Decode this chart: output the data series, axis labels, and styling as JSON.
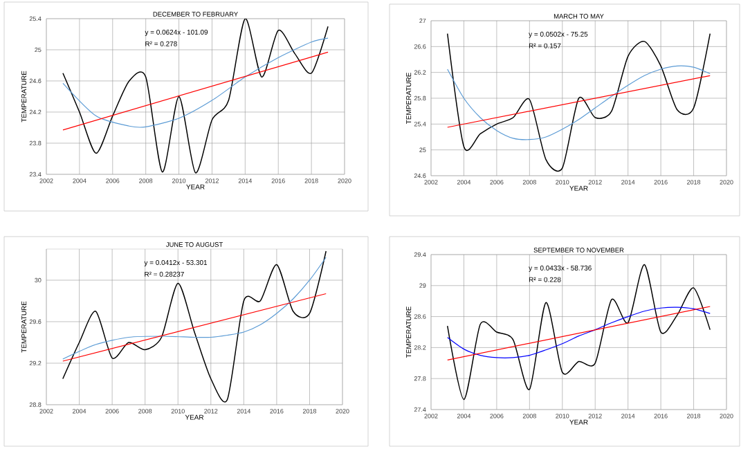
{
  "chart_data": [
    {
      "type": "line",
      "title": "DECEMBER TO FEBRUARY",
      "xlabel": "YEAR",
      "ylabel": "TEMPERATURE",
      "annotations": [
        "y = 0.0624x - 101.09",
        "R² = 0.278"
      ],
      "grid": true,
      "xlim": [
        2002,
        2020
      ],
      "xticks": [
        2002,
        2004,
        2006,
        2008,
        2010,
        2012,
        2014,
        2016,
        2018,
        2020
      ],
      "ylim": [
        23.4,
        25.4
      ],
      "yticks": [
        23.4,
        23.8,
        24.2,
        24.6,
        25,
        25.4
      ],
      "series": [
        {
          "color": "#000000",
          "x": [
            2003,
            2004,
            2005,
            2006,
            2007,
            2008,
            2009,
            2010,
            2011,
            2012,
            2013,
            2014,
            2015,
            2016,
            2017,
            2018,
            2019
          ],
          "values": [
            24.7,
            24.2,
            23.67,
            24.15,
            24.6,
            24.65,
            23.43,
            24.4,
            23.42,
            24.1,
            24.35,
            25.4,
            24.65,
            25.25,
            24.95,
            24.7,
            25.3
          ]
        },
        {
          "color": "#5b9bd5",
          "x": [
            2003,
            2005,
            2007,
            2008,
            2010,
            2012,
            2014,
            2016,
            2018,
            2019
          ],
          "values": [
            24.57,
            24.15,
            24.02,
            24.01,
            24.12,
            24.35,
            24.65,
            24.9,
            25.1,
            25.15
          ]
        },
        {
          "color": "#ff0000",
          "x": [
            2003,
            2019
          ],
          "values": [
            23.97,
            24.97
          ]
        }
      ]
    },
    {
      "type": "line",
      "title": "MARCH TO MAY",
      "xlabel": "YEAR",
      "ylabel": "TEMPERATURE",
      "annotations": [
        "y = 0.0502x - 75.25",
        "R² = 0.157"
      ],
      "grid": true,
      "xlim": [
        2002,
        2020
      ],
      "xticks": [
        2002,
        2004,
        2006,
        2008,
        2010,
        2012,
        2014,
        2016,
        2018,
        2020
      ],
      "ylim": [
        24.6,
        27
      ],
      "yticks": [
        24.6,
        25,
        25.4,
        25.8,
        26.2,
        26.6,
        27
      ],
      "series": [
        {
          "color": "#000000",
          "x": [
            2003,
            2004,
            2005,
            2006,
            2007,
            2008,
            2009,
            2010,
            2011,
            2012,
            2013,
            2014,
            2015,
            2016,
            2017,
            2018,
            2019
          ],
          "values": [
            26.8,
            25.05,
            25.25,
            25.4,
            25.5,
            25.78,
            24.85,
            24.72,
            25.8,
            25.5,
            25.6,
            26.45,
            26.68,
            26.3,
            25.62,
            25.65,
            26.8
          ]
        },
        {
          "color": "#5b9bd5",
          "x": [
            2003,
            2004,
            2005,
            2006,
            2007,
            2008,
            2009,
            2010,
            2011,
            2012,
            2013,
            2014,
            2015,
            2016,
            2017,
            2018,
            2019
          ],
          "values": [
            26.25,
            25.8,
            25.5,
            25.3,
            25.18,
            25.16,
            25.2,
            25.32,
            25.47,
            25.65,
            25.83,
            26.0,
            26.15,
            26.25,
            26.3,
            26.28,
            26.18
          ]
        },
        {
          "color": "#ff0000",
          "x": [
            2003,
            2019
          ],
          "values": [
            25.35,
            26.15
          ]
        }
      ]
    },
    {
      "type": "line",
      "title": "JUNE TO AUGUST",
      "xlabel": "YEAR",
      "ylabel": "TEMPERATURE",
      "annotations": [
        "y = 0.0412x - 53.301",
        "R² = 0.28237"
      ],
      "grid": true,
      "xlim": [
        2002,
        2020
      ],
      "xticks": [
        2002,
        2004,
        2006,
        2008,
        2010,
        2012,
        2014,
        2016,
        2018,
        2020
      ],
      "ylim": [
        28.8,
        30.3
      ],
      "yticks": [
        28.8,
        29.2,
        29.6,
        30
      ],
      "series": [
        {
          "color": "#000000",
          "x": [
            2003,
            2004,
            2005,
            2006,
            2007,
            2008,
            2009,
            2010,
            2011,
            2012,
            2013,
            2014,
            2015,
            2016,
            2017,
            2018,
            2019
          ],
          "values": [
            29.05,
            29.4,
            29.7,
            29.25,
            29.4,
            29.33,
            29.45,
            29.97,
            29.5,
            29.05,
            28.85,
            29.8,
            29.8,
            30.15,
            29.7,
            29.68,
            30.28
          ]
        },
        {
          "color": "#5b9bd5",
          "x": [
            2003,
            2005,
            2007,
            2009,
            2011,
            2012,
            2013,
            2014,
            2015,
            2016,
            2017,
            2018,
            2019
          ],
          "values": [
            29.24,
            29.38,
            29.45,
            29.46,
            29.45,
            29.45,
            29.47,
            29.5,
            29.57,
            29.68,
            29.82,
            30.0,
            30.22
          ]
        },
        {
          "color": "#ff0000",
          "x": [
            2003,
            2019
          ],
          "values": [
            29.22,
            29.87
          ]
        }
      ]
    },
    {
      "type": "line",
      "title": "SEPTEMBER TO NOVEMBER",
      "xlabel": "YEAR",
      "ylabel": "TEMPERATURE",
      "annotations": [
        "y = 0.0433x - 58.736",
        "R² = 0.228"
      ],
      "grid": true,
      "xlim": [
        2002,
        2020
      ],
      "xticks": [
        2002,
        2004,
        2006,
        2008,
        2010,
        2012,
        2014,
        2016,
        2018,
        2020
      ],
      "ylim": [
        27.4,
        29.4
      ],
      "yticks": [
        27.4,
        27.8,
        28.2,
        28.6,
        29,
        29.4
      ],
      "series": [
        {
          "color": "#000000",
          "x": [
            2003,
            2004,
            2005,
            2006,
            2007,
            2008,
            2009,
            2010,
            2011,
            2012,
            2013,
            2014,
            2015,
            2016,
            2017,
            2018,
            2019
          ],
          "values": [
            28.48,
            27.53,
            28.5,
            28.4,
            28.3,
            27.66,
            28.78,
            27.88,
            28.02,
            28.0,
            28.82,
            28.52,
            29.27,
            28.4,
            28.62,
            28.97,
            28.43
          ]
        },
        {
          "color": "#0000ff",
          "x": [
            2003,
            2004,
            2005,
            2006,
            2007,
            2008,
            2009,
            2010,
            2011,
            2012,
            2013,
            2014,
            2015,
            2016,
            2017,
            2018,
            2019
          ],
          "values": [
            28.33,
            28.18,
            28.1,
            28.07,
            28.07,
            28.1,
            28.17,
            28.25,
            28.35,
            28.43,
            28.52,
            28.6,
            28.67,
            28.71,
            28.72,
            28.7,
            28.64
          ]
        },
        {
          "color": "#ff0000",
          "x": [
            2003,
            2019
          ],
          "values": [
            28.04,
            28.73
          ]
        }
      ]
    }
  ]
}
